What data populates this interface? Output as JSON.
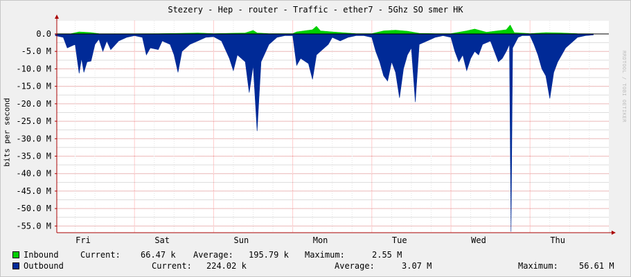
{
  "title": "Stezery - Hep - router - Traffic - ether7 - 5Ghz SO smer HK",
  "watermark": "RRDTOOL / TOBI OETIKER",
  "colors": {
    "inbound": "#00cf00",
    "outbound": "#002a97",
    "background": "#f0f0f0",
    "grid": "#ff9999",
    "axis": "#aa0000"
  },
  "legend": {
    "inbound": {
      "name": "Inbound",
      "current_label": "Current:",
      "current": "66.47 k",
      "average_label": "Average:",
      "average": "195.79 k",
      "maximum_label": "Maximum:",
      "maximum": "2.55 M"
    },
    "outbound": {
      "name": "Outbound",
      "current_label": "Current:",
      "current": "224.02 k",
      "average_label": "Average:",
      "average": "3.07 M",
      "maximum_label": "Maximum:",
      "maximum": "56.61 M"
    }
  },
  "chart_data": {
    "type": "area",
    "title": "Stezery - Hep - router - Traffic - ether7 - 5Ghz SO smer HK",
    "ylabel": "bits per second",
    "ylim": [
      -56.61,
      2.55
    ],
    "y_ticks": [
      0,
      -5,
      -10,
      -15,
      -20,
      -25,
      -30,
      -35,
      -40,
      -45,
      -50,
      -55
    ],
    "y_tick_labels": [
      "0.0",
      "-5.0 M",
      "-10.0 M",
      "-15.0 M",
      "-20.0 M",
      "-25.0 M",
      "-30.0 M",
      "-35.0 M",
      "-40.0 M",
      "-45.0 M",
      "-50.0 M",
      "-55.0 M"
    ],
    "x_labels": [
      "Fri",
      "Sat",
      "Sun",
      "Mon",
      "Tue",
      "Wed",
      "Thu"
    ],
    "x_range_days": [
      0,
      6.8
    ],
    "grid": true,
    "series": [
      {
        "name": "Inbound",
        "color": "#00cf00",
        "points": [
          [
            0,
            0.05
          ],
          [
            0.2,
            0.1
          ],
          [
            0.3,
            0.6
          ],
          [
            0.45,
            0.4
          ],
          [
            0.55,
            0.1
          ],
          [
            0.8,
            0.05
          ],
          [
            1.0,
            0.05
          ],
          [
            1.3,
            0.1
          ],
          [
            1.6,
            0.2
          ],
          [
            1.8,
            0.3
          ],
          [
            2.0,
            0.1
          ],
          [
            2.2,
            0.2
          ],
          [
            2.4,
            0.3
          ],
          [
            2.5,
            1.0
          ],
          [
            2.55,
            0.3
          ],
          [
            2.7,
            0.1
          ],
          [
            3.0,
            0.1
          ],
          [
            3.05,
            0.6
          ],
          [
            3.25,
            1.2
          ],
          [
            3.3,
            2.2
          ],
          [
            3.35,
            0.9
          ],
          [
            3.5,
            0.6
          ],
          [
            3.8,
            0.1
          ],
          [
            4.0,
            0.1
          ],
          [
            4.15,
            0.9
          ],
          [
            4.3,
            1.1
          ],
          [
            4.45,
            0.8
          ],
          [
            4.6,
            0.2
          ],
          [
            4.8,
            0.1
          ],
          [
            5.0,
            0.1
          ],
          [
            5.2,
            0.9
          ],
          [
            5.3,
            1.4
          ],
          [
            5.45,
            0.5
          ],
          [
            5.7,
            1.2
          ],
          [
            5.75,
            2.55
          ],
          [
            5.8,
            0.4
          ],
          [
            6.0,
            0.1
          ],
          [
            6.2,
            0.4
          ],
          [
            6.4,
            0.3
          ],
          [
            6.6,
            0.1
          ],
          [
            6.8,
            0.05
          ]
        ]
      },
      {
        "name": "Outbound",
        "color": "#002a97",
        "points": [
          [
            0,
            -0.5
          ],
          [
            0.1,
            -1
          ],
          [
            0.15,
            -4
          ],
          [
            0.25,
            -3
          ],
          [
            0.3,
            -11.3
          ],
          [
            0.33,
            -7
          ],
          [
            0.36,
            -11
          ],
          [
            0.4,
            -8
          ],
          [
            0.45,
            -7.8
          ],
          [
            0.5,
            -3
          ],
          [
            0.55,
            -1.5
          ],
          [
            0.6,
            -5
          ],
          [
            0.65,
            -2
          ],
          [
            0.7,
            -4.5
          ],
          [
            0.8,
            -2
          ],
          [
            0.9,
            -1
          ],
          [
            1.0,
            -0.5
          ],
          [
            1.1,
            -1
          ],
          [
            1.15,
            -6
          ],
          [
            1.2,
            -4
          ],
          [
            1.3,
            -4.5
          ],
          [
            1.35,
            -2
          ],
          [
            1.45,
            -3
          ],
          [
            1.5,
            -6
          ],
          [
            1.55,
            -11
          ],
          [
            1.6,
            -5
          ],
          [
            1.7,
            -3
          ],
          [
            1.8,
            -2
          ],
          [
            1.9,
            -1
          ],
          [
            2.0,
            -0.8
          ],
          [
            2.1,
            -2
          ],
          [
            2.2,
            -7
          ],
          [
            2.25,
            -10.5
          ],
          [
            2.3,
            -6
          ],
          [
            2.4,
            -8
          ],
          [
            2.45,
            -16.8
          ],
          [
            2.5,
            -9
          ],
          [
            2.55,
            -27.8
          ],
          [
            2.6,
            -8
          ],
          [
            2.7,
            -3
          ],
          [
            2.8,
            -1
          ],
          [
            2.9,
            -0.5
          ],
          [
            3.0,
            -0.5
          ],
          [
            3.05,
            -9
          ],
          [
            3.1,
            -7
          ],
          [
            3.2,
            -8.5
          ],
          [
            3.25,
            -13
          ],
          [
            3.3,
            -6
          ],
          [
            3.35,
            -5
          ],
          [
            3.45,
            -3
          ],
          [
            3.5,
            -1
          ],
          [
            3.6,
            -2
          ],
          [
            3.7,
            -1
          ],
          [
            3.8,
            -0.5
          ],
          [
            3.9,
            -0.5
          ],
          [
            4.0,
            -1
          ],
          [
            4.05,
            -5
          ],
          [
            4.1,
            -8
          ],
          [
            4.15,
            -12
          ],
          [
            4.2,
            -13.5
          ],
          [
            4.25,
            -8
          ],
          [
            4.3,
            -11
          ],
          [
            4.35,
            -18.3
          ],
          [
            4.4,
            -10
          ],
          [
            4.45,
            -6
          ],
          [
            4.5,
            -4
          ],
          [
            4.55,
            -19.5
          ],
          [
            4.6,
            -3
          ],
          [
            4.7,
            -2
          ],
          [
            4.8,
            -1
          ],
          [
            4.9,
            -0.5
          ],
          [
            5.0,
            -1
          ],
          [
            5.05,
            -5
          ],
          [
            5.1,
            -8
          ],
          [
            5.15,
            -6
          ],
          [
            5.2,
            -10.5
          ],
          [
            5.25,
            -7
          ],
          [
            5.3,
            -5
          ],
          [
            5.35,
            -6
          ],
          [
            5.4,
            -3
          ],
          [
            5.5,
            -2
          ],
          [
            5.55,
            -5
          ],
          [
            5.6,
            -8
          ],
          [
            5.65,
            -7
          ],
          [
            5.7,
            -5
          ],
          [
            5.74,
            -3
          ],
          [
            5.76,
            -56.61
          ],
          [
            5.78,
            -4
          ],
          [
            5.85,
            -1
          ],
          [
            5.9,
            -0.5
          ],
          [
            6.0,
            -0.5
          ],
          [
            6.05,
            -3
          ],
          [
            6.1,
            -6
          ],
          [
            6.15,
            -10
          ],
          [
            6.2,
            -12
          ],
          [
            6.25,
            -18.5
          ],
          [
            6.3,
            -11
          ],
          [
            6.35,
            -8
          ],
          [
            6.4,
            -6
          ],
          [
            6.45,
            -4
          ],
          [
            6.5,
            -3
          ],
          [
            6.6,
            -1
          ],
          [
            6.7,
            -0.5
          ],
          [
            6.8,
            -0.3
          ]
        ]
      }
    ]
  }
}
